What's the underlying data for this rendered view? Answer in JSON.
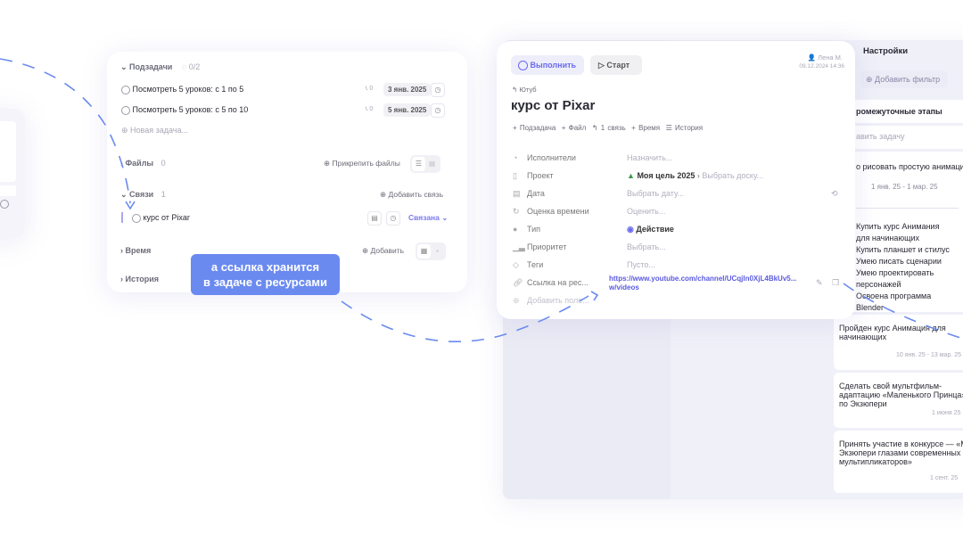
{
  "subtasks_card": {
    "subtasks": {
      "title": "Подзадачи",
      "progress": "0/2",
      "items": [
        {
          "label": "Посмотреть 5 уроков: с 1 по 5",
          "count": "0",
          "date": "3 янв. 2025"
        },
        {
          "label": "Посмотреть 5 уроков: с 5 по 10",
          "count": "0",
          "date": "5 янв. 2025"
        }
      ],
      "new_task": "Новая задача..."
    },
    "files": {
      "title": "Файлы",
      "count": "0",
      "action": "Прикрепить файлы"
    },
    "links": {
      "title": "Связи",
      "count": "1",
      "action": "Добавить связь",
      "item": "курс от Pixar",
      "status": "Связана"
    },
    "time": {
      "title": "Время",
      "action": "Добавить"
    },
    "history": {
      "title": "История"
    }
  },
  "callout": {
    "line1": "а ссылка хранится",
    "line2": "в задаче с ресурсами",
    "color": "#6a8af0"
  },
  "task_card": {
    "complete_button": "Выполнить",
    "start_button": "Старт",
    "author": "Лена М.",
    "timestamp": "09.12.2024 14:36",
    "parent": "Ютуб",
    "title": "курс от Pixar",
    "actions": [
      "Подзадача",
      "Файл",
      "1 связь",
      "Время",
      "История"
    ],
    "fields": [
      {
        "label": "Исполнители",
        "value": "Назначить...",
        "icon": "user-icon"
      },
      {
        "label": "Проект",
        "value": "Моя цель 2025",
        "extra": "Выбрать доску...",
        "icon": "project-icon"
      },
      {
        "label": "Дата",
        "value": "Выбрать дату...",
        "icon": "calendar-icon"
      },
      {
        "label": "Оценка времени",
        "value": "Оценить...",
        "icon": "clock-icon"
      },
      {
        "label": "Тип",
        "value": "Действие",
        "icon": "type-icon"
      },
      {
        "label": "Приоритет",
        "value": "Выбрать...",
        "icon": "priority-icon"
      },
      {
        "label": "Теги",
        "value": "Пусто...",
        "icon": "tag-icon"
      },
      {
        "label": "Ссылка на рес...",
        "value": "https://www.youtube.com/channel/UCqjln0XjL4BkUv5...",
        "value2": "w/videos",
        "icon": "link-icon"
      }
    ],
    "add_field": "Добавить поле..."
  },
  "board": {
    "settings": "Настройки",
    "add_filter": "Добавить фильтр",
    "column_title": "ромежуточные этапы",
    "add_task": "авить задачу",
    "cards": [
      {
        "title": "о рисовать простую анимацию",
        "dates": "1 янв. 25 - 1 мар. 25"
      },
      {
        "checklist": [
          "Купить курс Анимания для начинающих",
          "Купить планшет и стилус",
          "Умею писать сценарии",
          "Умею проектировать персонажей",
          "Освоена программа Blender"
        ]
      },
      {
        "title": "Пройден курс Анимация для начинающих",
        "dates": "10 янв. 25 - 13 мар. 25"
      },
      {
        "title": "Сделать свой мультфильм-адаптацию «Маленького Принца» по Экзюпери",
        "dates": "1 июня 25"
      },
      {
        "title": "Принять участие в конкурсе — «М Экзюпери глазами современных мультипликаторов»",
        "dates": "1 сент. 25"
      }
    ]
  },
  "colors": {
    "accent": "#6a6af0",
    "dash": "#6a8af0"
  }
}
